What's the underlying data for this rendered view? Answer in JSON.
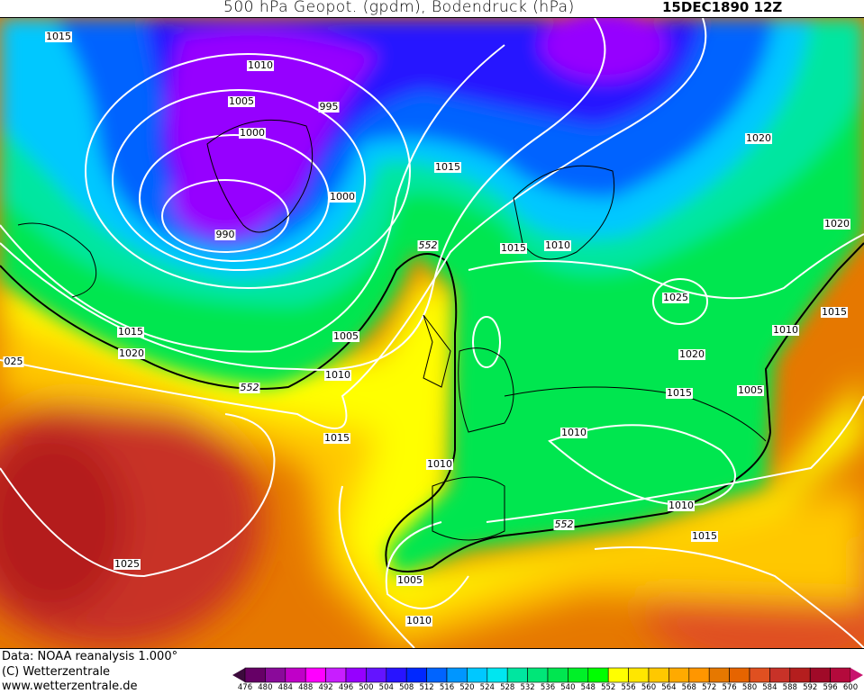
{
  "header": {
    "title": "500 hPa Geopot. (gpdm), Bodendruck (hPa)",
    "datetime": "15DEC1890 12Z"
  },
  "map": {
    "isobar_labels": [
      "1015",
      "1010",
      "1005",
      "995",
      "1000",
      "1015",
      "1000",
      "990",
      "1015",
      "1010",
      "1020",
      "1020",
      "1025",
      "1015",
      "1010",
      "1015",
      "1005",
      "1020",
      "025",
      "1010",
      "1020",
      "1015",
      "1005",
      "1010",
      "1015",
      "1010",
      "1010",
      "1015",
      "1025",
      "1005",
      "1010"
    ],
    "geopotential_labels": [
      "552",
      "552",
      "552"
    ],
    "colors": {
      "isobar": "#ffffff",
      "contour_552": "#000000"
    }
  },
  "footer": {
    "data_source": "Data: NOAA reanalysis 1.000°",
    "copyright": "(C) Wetterzentrale",
    "website": "www.wetterzentrale.de"
  },
  "legend": {
    "unit": "gpdm",
    "ticks": [
      "476",
      "480",
      "484",
      "488",
      "492",
      "496",
      "500",
      "504",
      "508",
      "512",
      "516",
      "520",
      "524",
      "528",
      "532",
      "536",
      "540",
      "548",
      "552",
      "556",
      "560",
      "564",
      "568",
      "572",
      "576",
      "580",
      "584",
      "588",
      "592",
      "596",
      "600"
    ],
    "colors": [
      "#3c0a3c",
      "#660066",
      "#8a0a9a",
      "#c000c8",
      "#ff00ff",
      "#c81eff",
      "#9600ff",
      "#6414ff",
      "#2814ff",
      "#0028ff",
      "#0064ff",
      "#0096ff",
      "#00c8ff",
      "#00e6f0",
      "#00e6a0",
      "#00e678",
      "#00e650",
      "#00f028",
      "#00ff00",
      "#ffff00",
      "#ffe600",
      "#ffc800",
      "#ffaa00",
      "#ff9600",
      "#e67800",
      "#e66400",
      "#e05020",
      "#c83228",
      "#b41e1e",
      "#a00a28",
      "#b40a3c",
      "#c8146e"
    ]
  }
}
